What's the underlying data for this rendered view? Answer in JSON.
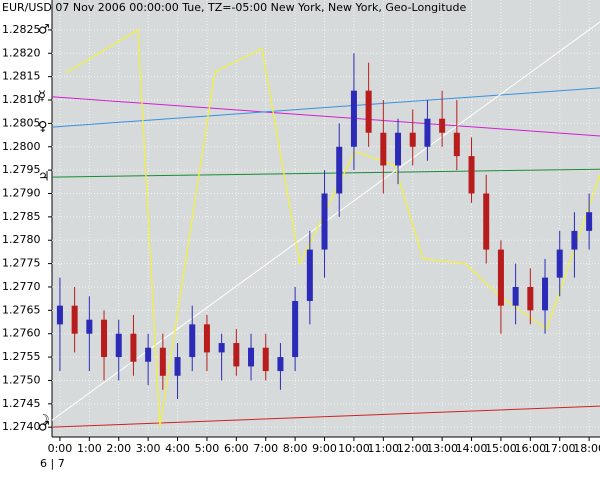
{
  "chart_data": {
    "type": "candlestick",
    "title": "EUR/USD  07 Nov 2006 00:00:00 Tue, TZ=-05:00 New York, New York, Geo-Longitude",
    "date_label": "6 | 7",
    "x": [
      0,
      0.5,
      1,
      1.5,
      2,
      2.5,
      3,
      3.5,
      4,
      4.5,
      5,
      5.5,
      6,
      6.5,
      7,
      7.5,
      8,
      8.5,
      9,
      9.5,
      10,
      10.5,
      11,
      11.5,
      12,
      12.5,
      13,
      13.5,
      14,
      14.5,
      15,
      15.5,
      16,
      16.5,
      17,
      17.5,
      18
    ],
    "open": [
      1.2762,
      1.2766,
      1.276,
      1.2763,
      1.2755,
      1.276,
      1.2754,
      1.2757,
      1.2751,
      1.2755,
      1.2762,
      1.2756,
      1.2758,
      1.2753,
      1.2757,
      1.2752,
      1.2755,
      1.2767,
      1.2778,
      1.279,
      1.28,
      1.2812,
      1.2803,
      1.2796,
      1.2803,
      1.28,
      1.2806,
      1.2803,
      1.2798,
      1.279,
      1.2778,
      1.2766,
      1.277,
      1.2765,
      1.2772,
      1.2778,
      1.2782
    ],
    "high": [
      1.2772,
      1.277,
      1.2768,
      1.2765,
      1.2763,
      1.2764,
      1.276,
      1.276,
      1.2758,
      1.2766,
      1.2764,
      1.276,
      1.2761,
      1.276,
      1.276,
      1.2758,
      1.277,
      1.2782,
      1.2795,
      1.2805,
      1.282,
      1.2818,
      1.281,
      1.2806,
      1.2808,
      1.281,
      1.2812,
      1.281,
      1.2802,
      1.2794,
      1.278,
      1.2775,
      1.2774,
      1.2776,
      1.2782,
      1.2786,
      1.279
    ],
    "low": [
      1.2752,
      1.2756,
      1.2752,
      1.275,
      1.275,
      1.2751,
      1.2749,
      1.2748,
      1.2746,
      1.2752,
      1.2752,
      1.275,
      1.2751,
      1.275,
      1.275,
      1.2748,
      1.2752,
      1.2762,
      1.2772,
      1.2785,
      1.2795,
      1.28,
      1.279,
      1.2792,
      1.2796,
      1.2797,
      1.28,
      1.2795,
      1.2788,
      1.2775,
      1.276,
      1.2762,
      1.2762,
      1.276,
      1.2768,
      1.2772,
      1.2778
    ],
    "close": [
      1.2766,
      1.276,
      1.2763,
      1.2755,
      1.276,
      1.2754,
      1.2757,
      1.2751,
      1.2755,
      1.2762,
      1.2756,
      1.2758,
      1.2753,
      1.2757,
      1.2752,
      1.2755,
      1.2767,
      1.2778,
      1.279,
      1.28,
      1.2812,
      1.2803,
      1.2796,
      1.2803,
      1.28,
      1.2806,
      1.2803,
      1.2798,
      1.279,
      1.2778,
      1.2766,
      1.277,
      1.2765,
      1.2772,
      1.2778,
      1.2782,
      1.2786
    ],
    "up_color": "#2b2bb8",
    "down_color": "#b81c1c",
    "yellow_line": {
      "color": "#f0f040",
      "x": [
        0.2,
        2.65,
        3.4,
        5.27,
        6.87,
        8.16,
        10.03,
        11.39,
        12.35,
        13.78,
        14.97,
        16.56,
        18.37
      ],
      "values": [
        1.28158,
        1.2825,
        1.274,
        1.2816,
        1.2821,
        1.2775,
        1.2799,
        1.2796,
        1.2776,
        1.2775,
        1.2768,
        1.2761,
        1.2794
      ]
    },
    "line_x": [
      -0.27,
      18.37
    ],
    "lines": [
      {
        "symbol": "☿",
        "color": "#d020d0",
        "values": [
          1.28107,
          1.28023
        ]
      },
      {
        "symbol": "♀",
        "color": "#3a8ee0",
        "values": [
          1.28042,
          1.28126
        ]
      },
      {
        "symbol": "♃",
        "color": "#1a8a3a",
        "values": [
          1.27935,
          1.27952
        ]
      },
      {
        "symbol": "♂",
        "color": "#d02020",
        "values": [
          1.274,
          1.27445
        ]
      },
      {
        "symbol": "☽",
        "color": "#ffffff",
        "values": [
          1.27415,
          1.28267
        ]
      }
    ],
    "top_symbol": {
      "symbol": "♂",
      "color": "#d02020"
    },
    "xlim": [
      -0.27,
      18.37
    ],
    "ylim": [
      1.27379,
      1.28314
    ],
    "xticks": [
      {
        "value": 0,
        "label": "0:00"
      },
      {
        "value": 1,
        "label": "1:00"
      },
      {
        "value": 2,
        "label": "2:00"
      },
      {
        "value": 3,
        "label": "3:00"
      },
      {
        "value": 4,
        "label": "4:00"
      },
      {
        "value": 5,
        "label": "5:00"
      },
      {
        "value": 6,
        "label": "6:00"
      },
      {
        "value": 7,
        "label": "7:00"
      },
      {
        "value": 8,
        "label": "8:00"
      },
      {
        "value": 9,
        "label": "9:00"
      },
      {
        "value": 10,
        "label": "10:00"
      },
      {
        "value": 11,
        "label": "11:00"
      },
      {
        "value": 12,
        "label": "12:00"
      },
      {
        "value": 13,
        "label": "13:00"
      },
      {
        "value": 14,
        "label": "14:00"
      },
      {
        "value": 15,
        "label": "15:00"
      },
      {
        "value": 16,
        "label": "16:00"
      },
      {
        "value": 17,
        "label": "17:00"
      },
      {
        "value": 18,
        "label": "18:00"
      }
    ],
    "yticks": [
      {
        "value": 1.274,
        "label": "1.2740"
      },
      1.2745,
      {
        "value": 1.275,
        "label": "1.2750"
      },
      1.2755,
      {
        "value": 1.276,
        "label": "1.2760"
      },
      1.2765,
      {
        "value": 1.277,
        "label": "1.2770"
      },
      1.2775,
      {
        "value": 1.278,
        "label": "1.2780"
      },
      1.2785,
      {
        "value": 1.279,
        "label": "1.2790"
      },
      1.2795,
      {
        "value": 1.28,
        "label": "1.2800"
      },
      1.2805,
      {
        "value": 1.281,
        "label": "1.2810"
      },
      1.2815,
      {
        "value": 1.282,
        "label": "1.2820"
      },
      1.2825
    ],
    "grid": true
  }
}
